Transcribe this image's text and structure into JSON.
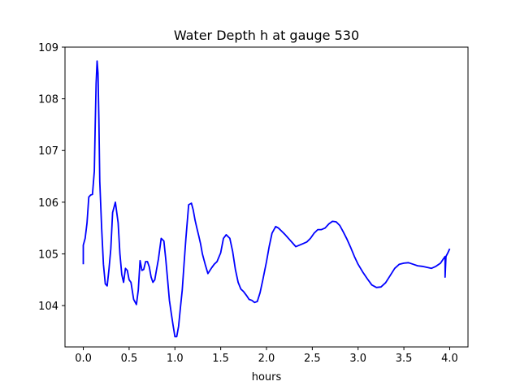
{
  "chart_data": {
    "type": "line",
    "title": "Water Depth h at gauge 530",
    "xlabel": "hours",
    "ylabel": "",
    "xlim": [
      -0.2,
      4.2
    ],
    "ylim": [
      103.2,
      109.0
    ],
    "xticks": [
      0.0,
      0.5,
      1.0,
      1.5,
      2.0,
      2.5,
      3.0,
      3.5,
      4.0
    ],
    "xtick_labels": [
      "0.0",
      "0.5",
      "1.0",
      "1.5",
      "2.0",
      "2.5",
      "3.0",
      "3.5",
      "4.0"
    ],
    "yticks": [
      104,
      105,
      106,
      107,
      108,
      109
    ],
    "ytick_labels": [
      "104",
      "105",
      "106",
      "107",
      "108",
      "109"
    ],
    "grid": false,
    "series": [
      {
        "color": "#0000ff",
        "x": [
          0.0,
          0.0,
          0.02,
          0.04,
          0.06,
          0.08,
          0.1,
          0.12,
          0.13,
          0.14,
          0.15,
          0.16,
          0.17,
          0.18,
          0.2,
          0.22,
          0.24,
          0.26,
          0.28,
          0.3,
          0.32,
          0.35,
          0.38,
          0.4,
          0.42,
          0.44,
          0.46,
          0.48,
          0.5,
          0.52,
          0.55,
          0.58,
          0.6,
          0.62,
          0.64,
          0.66,
          0.68,
          0.7,
          0.72,
          0.74,
          0.76,
          0.78,
          0.8,
          0.82,
          0.85,
          0.88,
          0.9,
          0.92,
          0.94,
          0.96,
          0.98,
          1.0,
          1.02,
          1.04,
          1.06,
          1.08,
          1.1,
          1.12,
          1.15,
          1.18,
          1.2,
          1.22,
          1.24,
          1.26,
          1.28,
          1.3,
          1.33,
          1.36,
          1.4,
          1.43,
          1.46,
          1.5,
          1.53,
          1.56,
          1.6,
          1.63,
          1.66,
          1.69,
          1.72,
          1.75,
          1.78,
          1.81,
          1.84,
          1.87,
          1.9,
          1.93,
          1.96,
          2.0,
          2.03,
          2.06,
          2.1,
          2.13,
          2.16,
          2.2,
          2.23,
          2.25,
          2.28,
          2.32,
          2.36,
          2.4,
          2.44,
          2.48,
          2.52,
          2.56,
          2.6,
          2.64,
          2.68,
          2.72,
          2.76,
          2.8,
          2.84,
          2.88,
          2.92,
          2.96,
          3.0,
          3.05,
          3.1,
          3.15,
          3.2,
          3.25,
          3.3,
          3.35,
          3.4,
          3.45,
          3.5,
          3.55,
          3.6,
          3.65,
          3.7,
          3.75,
          3.8,
          3.85,
          3.9,
          3.93,
          3.95,
          3.95,
          3.96,
          3.98,
          4.0
        ],
        "y": [
          104.8,
          105.17,
          105.3,
          105.6,
          106.1,
          106.14,
          106.15,
          106.6,
          107.5,
          108.3,
          108.73,
          108.5,
          107.6,
          106.4,
          105.5,
          104.8,
          104.42,
          104.38,
          104.7,
          105.1,
          105.8,
          106.0,
          105.6,
          105.0,
          104.6,
          104.45,
          104.72,
          104.68,
          104.5,
          104.45,
          104.12,
          104.02,
          104.3,
          104.87,
          104.68,
          104.7,
          104.85,
          104.85,
          104.75,
          104.55,
          104.45,
          104.5,
          104.7,
          104.9,
          105.3,
          105.25,
          104.9,
          104.5,
          104.1,
          103.85,
          103.62,
          103.4,
          103.4,
          103.6,
          103.95,
          104.3,
          104.8,
          105.3,
          105.95,
          105.98,
          105.85,
          105.65,
          105.5,
          105.35,
          105.2,
          105.0,
          104.8,
          104.62,
          104.73,
          104.8,
          104.85,
          105.02,
          105.3,
          105.37,
          105.3,
          105.05,
          104.7,
          104.45,
          104.32,
          104.27,
          104.2,
          104.12,
          104.1,
          104.06,
          104.08,
          104.25,
          104.5,
          104.85,
          105.15,
          105.4,
          105.53,
          105.5,
          105.45,
          105.38,
          105.32,
          105.28,
          105.22,
          105.14,
          105.17,
          105.2,
          105.23,
          105.3,
          105.4,
          105.47,
          105.47,
          105.5,
          105.58,
          105.63,
          105.62,
          105.55,
          105.42,
          105.28,
          105.12,
          104.95,
          104.8,
          104.65,
          104.52,
          104.4,
          104.35,
          104.36,
          104.44,
          104.58,
          104.72,
          104.8,
          104.82,
          104.83,
          104.8,
          104.77,
          104.76,
          104.74,
          104.72,
          104.76,
          104.82,
          104.9,
          104.95,
          104.55,
          104.95,
          105.02,
          105.1
        ]
      }
    ]
  }
}
